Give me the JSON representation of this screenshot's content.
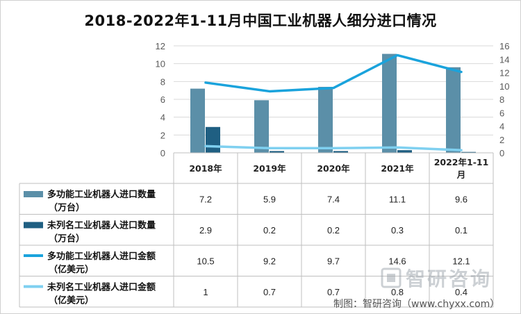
{
  "chart_data": {
    "type": "bar",
    "title": "2018-2022年1-11月中国工业机器人细分进口情况",
    "categories": [
      "2018年",
      "2019年",
      "2020年",
      "2021年",
      "2022年1-11月"
    ],
    "y_left": {
      "range": [
        0,
        12
      ],
      "ticks": [
        0,
        2,
        4,
        6,
        8,
        10,
        12
      ]
    },
    "y_right": {
      "range": [
        0,
        16
      ],
      "ticks": [
        0,
        2,
        4,
        6,
        8,
        10,
        12,
        14,
        16
      ]
    },
    "grid": true,
    "legend": "left-table",
    "series": [
      {
        "name": "多功能工业机器人进口数量（万台）",
        "type": "bar",
        "axis": "left",
        "color": "#5b8fa8",
        "values": [
          7.2,
          5.9,
          7.4,
          11.1,
          9.6
        ]
      },
      {
        "name": "未列名工业机器人进口数量（万台）",
        "type": "bar",
        "axis": "left",
        "color": "#1f5f82",
        "values": [
          2.9,
          0.2,
          0.2,
          0.3,
          0.1
        ]
      },
      {
        "name": "多功能工业机器人进口金额（亿美元）",
        "type": "line",
        "axis": "right",
        "color": "#1aa3dc",
        "values": [
          10.5,
          9.2,
          9.7,
          14.6,
          12.1
        ]
      },
      {
        "name": "未列名工业机器人进口金额（亿美元）",
        "type": "line",
        "axis": "right",
        "color": "#7fd0f0",
        "values": [
          1,
          0.7,
          0.7,
          0.8,
          0.4
        ]
      }
    ]
  },
  "watermark": {
    "text": "智研咨询"
  },
  "credit": "制图：智研咨询（www.chyxx.com）"
}
